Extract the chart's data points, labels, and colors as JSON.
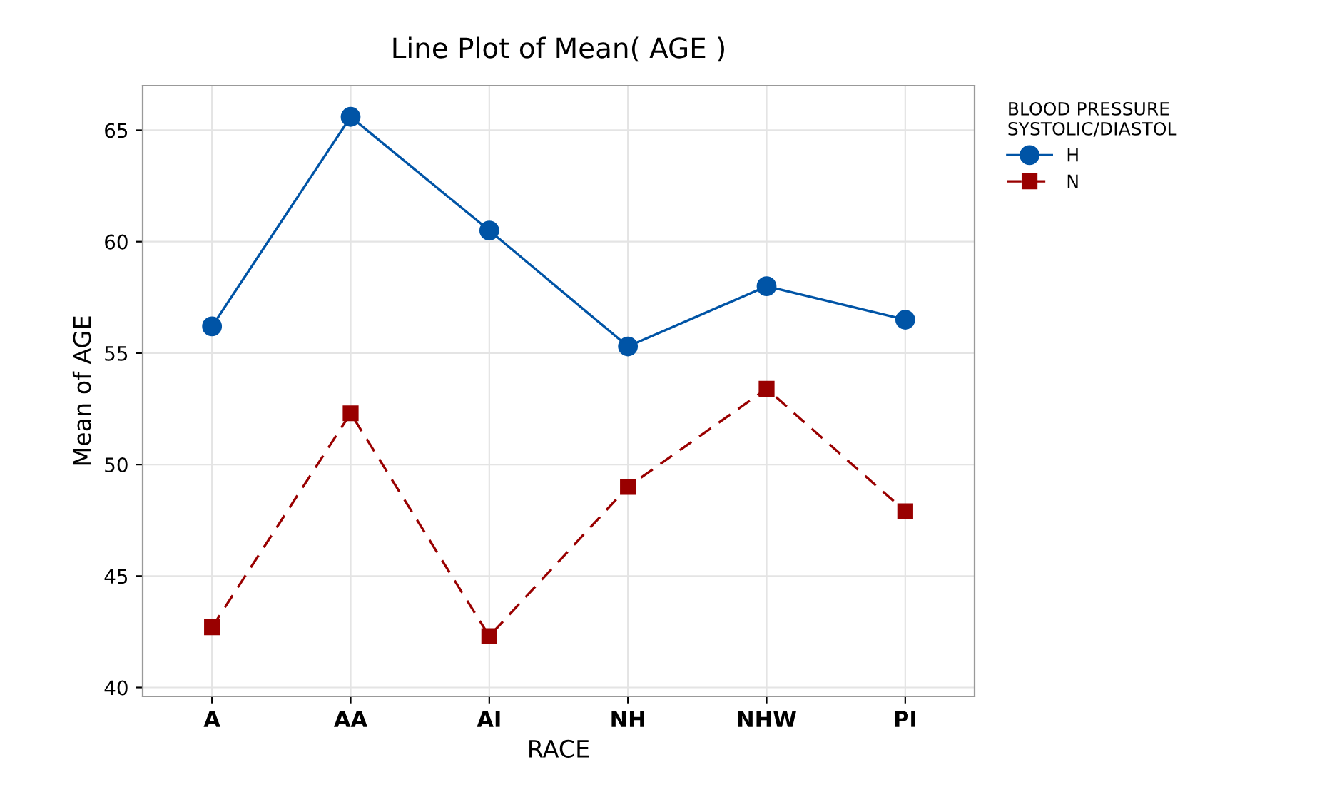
{
  "chart_data": {
    "type": "line",
    "title": "Line Plot of Mean( AGE )",
    "xlabel": "RACE",
    "ylabel": "Mean of AGE",
    "legend_title": "BLOOD PRESSURE\nSYSTOLIC/DIASTOL",
    "categories": [
      "A",
      "AA",
      "AI",
      "NH",
      "NHW",
      "PI"
    ],
    "series": [
      {
        "name": "H",
        "color": "#0054a6",
        "values": [
          56.2,
          65.6,
          60.5,
          55.3,
          58.0,
          56.5
        ],
        "marker": "circle",
        "line_style": "solid"
      },
      {
        "name": "N",
        "color": "#990000",
        "values": [
          42.7,
          52.3,
          42.3,
          49.0,
          53.4,
          47.9
        ],
        "marker": "square",
        "line_style": "dashed"
      }
    ],
    "ylim": [
      39.6,
      67
    ],
    "yticks": [
      40,
      45,
      50,
      55,
      60,
      65
    ],
    "grid": true,
    "legend": "top right"
  }
}
